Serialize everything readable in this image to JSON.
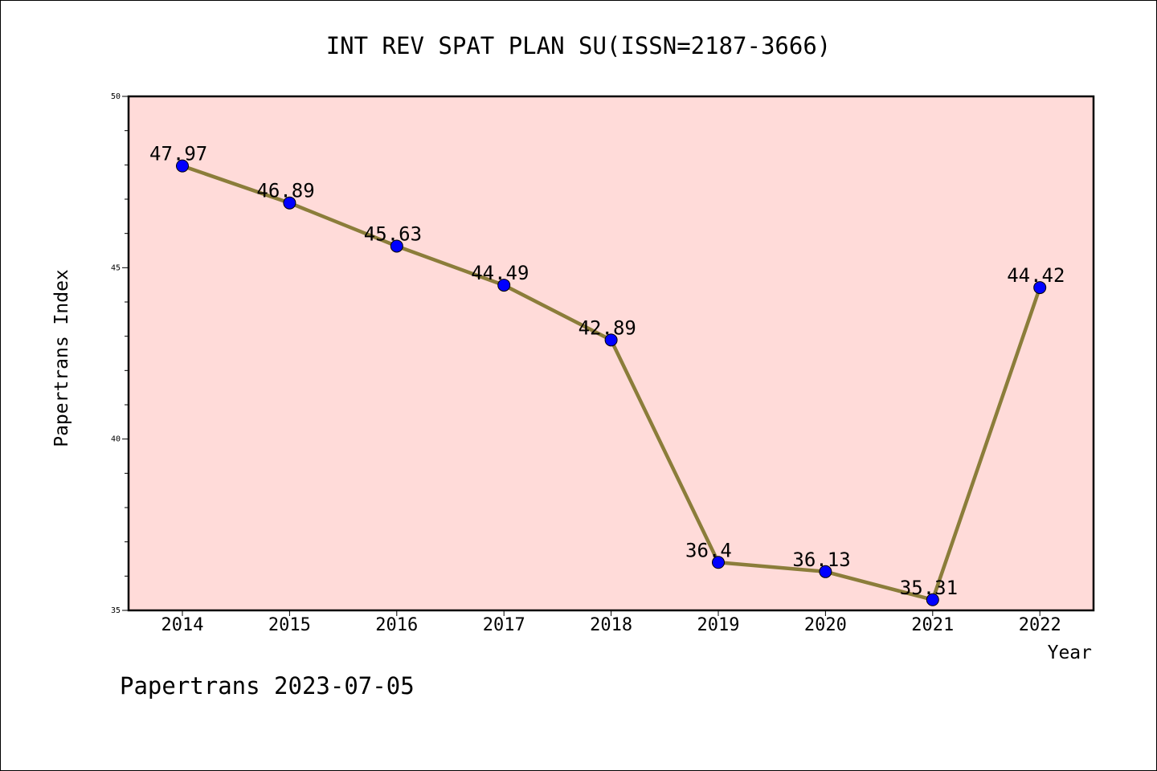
{
  "chart_data": {
    "type": "line",
    "title": "INT REV SPAT PLAN SU(ISSN=2187-3666)",
    "xlabel": "Year",
    "ylabel": "Papertrans Index",
    "categories": [
      "2014",
      "2015",
      "2016",
      "2017",
      "2018",
      "2019",
      "2020",
      "2021",
      "2022"
    ],
    "values": [
      47.97,
      46.89,
      45.63,
      44.49,
      42.89,
      36.4,
      36.13,
      35.31,
      44.42
    ],
    "data_labels": [
      "47.97",
      "46.89",
      "45.63",
      "44.49",
      "42.89",
      "36.4",
      "36.13",
      "35.31",
      "44.42"
    ],
    "ylim": [
      35,
      50
    ],
    "yticks": [
      "35",
      "40",
      "45",
      "50"
    ],
    "grid": false,
    "legend": "none",
    "colors": {
      "plot_background": "#ffdbd9",
      "line": "#8b7d3a",
      "marker": "#0000ff"
    }
  },
  "footer": {
    "text": "Papertrans 2023-07-05"
  }
}
